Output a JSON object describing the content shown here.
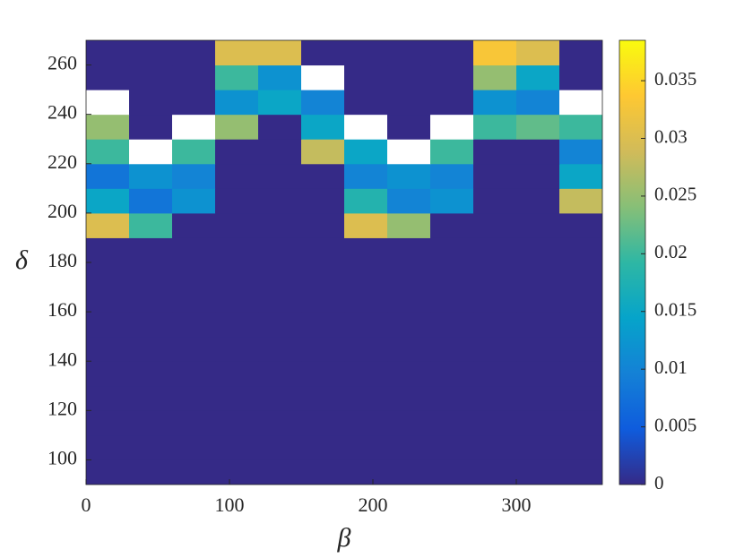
{
  "chart_data": {
    "type": "heatmap",
    "xlabel": "β",
    "ylabel": "δ",
    "x": [
      15,
      45,
      75,
      105,
      135,
      165,
      195,
      225,
      255,
      285,
      315,
      345
    ],
    "y": [
      95,
      105,
      115,
      125,
      135,
      145,
      155,
      165,
      175,
      185,
      195,
      205,
      215,
      225,
      235,
      245,
      255,
      265
    ],
    "values": [
      [
        0,
        0,
        0,
        0,
        0,
        0,
        0,
        0,
        0,
        0,
        0,
        0
      ],
      [
        0,
        0,
        0,
        0,
        0,
        0,
        0,
        0,
        0,
        0,
        0,
        0
      ],
      [
        0,
        0,
        0,
        0,
        0,
        0,
        0,
        0,
        0,
        0,
        0,
        0
      ],
      [
        0,
        0,
        0,
        0,
        0,
        0,
        0,
        0,
        0,
        0,
        0,
        0
      ],
      [
        0,
        0,
        0,
        0,
        0,
        0,
        0,
        0,
        0,
        0,
        0,
        0
      ],
      [
        0,
        0,
        0,
        0,
        0,
        0,
        0,
        0,
        0,
        0,
        0,
        0
      ],
      [
        0,
        0,
        0,
        0,
        0,
        0,
        0,
        0,
        0,
        0,
        0,
        0
      ],
      [
        0,
        0,
        0,
        0,
        0,
        0,
        0,
        0,
        0,
        0,
        0,
        0
      ],
      [
        0,
        0,
        0,
        0,
        0,
        0,
        0,
        0,
        0,
        0,
        0,
        0
      ],
      [
        0,
        0,
        0,
        0,
        0,
        0,
        0,
        0,
        0,
        0,
        0,
        0
      ],
      [
        0.03,
        0.02,
        0,
        0,
        0,
        0,
        0.03,
        0.025,
        0,
        0,
        0,
        0
      ],
      [
        0.015,
        0.008,
        0.012,
        0,
        0,
        0,
        0.018,
        0.01,
        0.012,
        0,
        0,
        0.028
      ],
      [
        0.008,
        0.012,
        0.01,
        0,
        0,
        0,
        0.01,
        0.012,
        0.01,
        0,
        0,
        0.015
      ],
      [
        0.02,
        null,
        0.02,
        0,
        0,
        0.028,
        0.015,
        null,
        0.02,
        0,
        0,
        0.01
      ],
      [
        0.025,
        0,
        null,
        0.025,
        0,
        0.015,
        null,
        0,
        null,
        0.02,
        0.022,
        0.02
      ],
      [
        null,
        0,
        0,
        0.012,
        0.015,
        0.01,
        0,
        0,
        0,
        0.012,
        0.01,
        null
      ],
      [
        0,
        0,
        0,
        0.02,
        0.012,
        null,
        0,
        0,
        0,
        0.025,
        0.015,
        0
      ],
      [
        0,
        0,
        0,
        0.03,
        0.03,
        0,
        0,
        0,
        0,
        0.033,
        0.03,
        0
      ]
    ],
    "xlim": [
      0,
      360
    ],
    "xticks": [
      0,
      100,
      200,
      300
    ],
    "ylim": [
      90,
      270
    ],
    "yticks": [
      100,
      120,
      140,
      160,
      180,
      200,
      220,
      240,
      260
    ],
    "clim": [
      0,
      0.0385
    ],
    "cticks": [
      0,
      0.005,
      0.01,
      0.015,
      0.02,
      0.025,
      0.03,
      0.035
    ],
    "colormap": [
      "#352a87",
      "#0f5cdd",
      "#1481d6",
      "#06a4ca",
      "#2eb7a4",
      "#87bf77",
      "#d1bb59",
      "#fec832",
      "#f9fb0e"
    ],
    "null_color": "#ffffff"
  }
}
